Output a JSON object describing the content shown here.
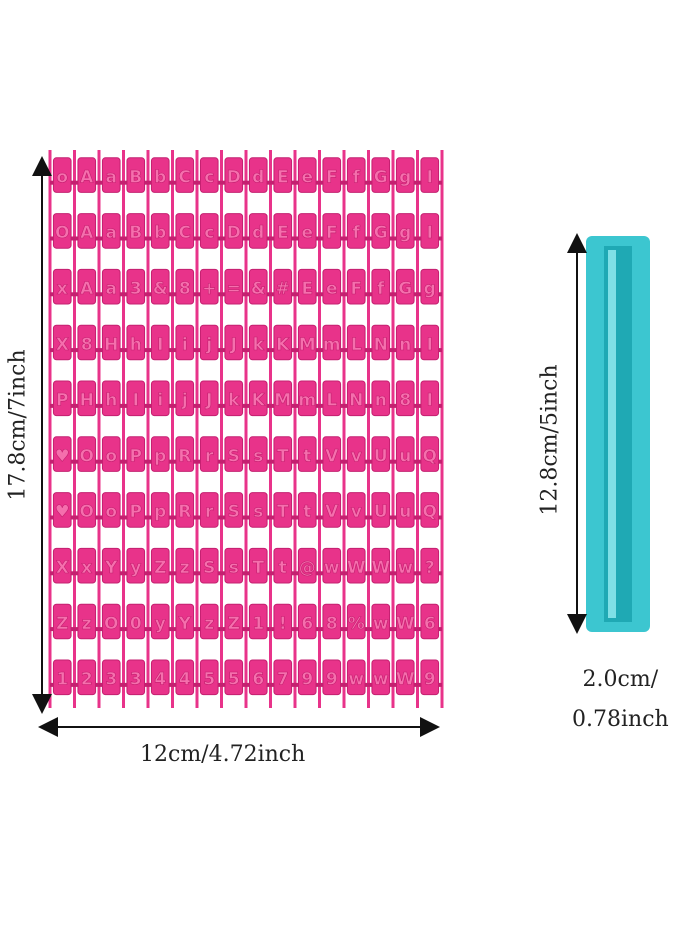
{
  "labels": {
    "width": "12cm/4.72inch",
    "height": "17.8cm/7inch",
    "ruler_height": "12.8cm/5inch",
    "ruler_width_line1": "2.0cm/",
    "ruler_width_line2": "0.78inch"
  },
  "stamp_rows": [
    [
      "o",
      "A",
      "a",
      "B",
      "b",
      "C",
      "c",
      "D",
      "d",
      "E",
      "e",
      "F",
      "f",
      "G",
      "g",
      "I"
    ],
    [
      "O",
      "A",
      "a",
      "B",
      "b",
      "C",
      "c",
      "D",
      "d",
      "E",
      "e",
      "F",
      "f",
      "G",
      "g",
      "I"
    ],
    [
      "x",
      "A",
      "a",
      "3",
      "&",
      "8",
      "+",
      "=",
      "&",
      "#",
      "E",
      "e",
      "F",
      "f",
      "G",
      "g"
    ],
    [
      "X",
      "8",
      "H",
      "h",
      "I",
      "i",
      "j",
      "J",
      "k",
      "K",
      "M",
      "m",
      "L",
      "N",
      "n",
      "I"
    ],
    [
      "P",
      "H",
      "h",
      "I",
      "i",
      "j",
      "J",
      "k",
      "K",
      "M",
      "m",
      "L",
      "N",
      "n",
      "8",
      "I"
    ],
    [
      "♥",
      "O",
      "o",
      "P",
      "p",
      "R",
      "r",
      "S",
      "s",
      "T",
      "t",
      "V",
      "v",
      "U",
      "u",
      "Q"
    ],
    [
      "♥",
      "O",
      "o",
      "P",
      "p",
      "R",
      "r",
      "S",
      "s",
      "T",
      "t",
      "V",
      "v",
      "U",
      "u",
      "Q"
    ],
    [
      "X",
      "x",
      "Y",
      "y",
      "Z",
      "z",
      "S",
      "s",
      "T",
      "t",
      "@",
      "w",
      "W",
      "W",
      "w",
      "?"
    ],
    [
      "Z",
      "z",
      "O",
      "0",
      "y",
      "Y",
      "z",
      "Z",
      "1",
      "!",
      "6",
      "8",
      "%",
      "w",
      "W",
      "6"
    ],
    [
      "1",
      "2",
      "3",
      "3",
      "4",
      "4",
      "5",
      "5",
      "6",
      "7",
      "9",
      "9",
      "w",
      "w",
      "W",
      "9"
    ]
  ],
  "colors": {
    "stamp": "#e8338a",
    "stamp_dark": "#c42070",
    "ruler": "#3cc6d0",
    "ruler_dark": "#1fa9b4",
    "ruler_light": "#7fe0e6",
    "arrow": "#111111"
  }
}
